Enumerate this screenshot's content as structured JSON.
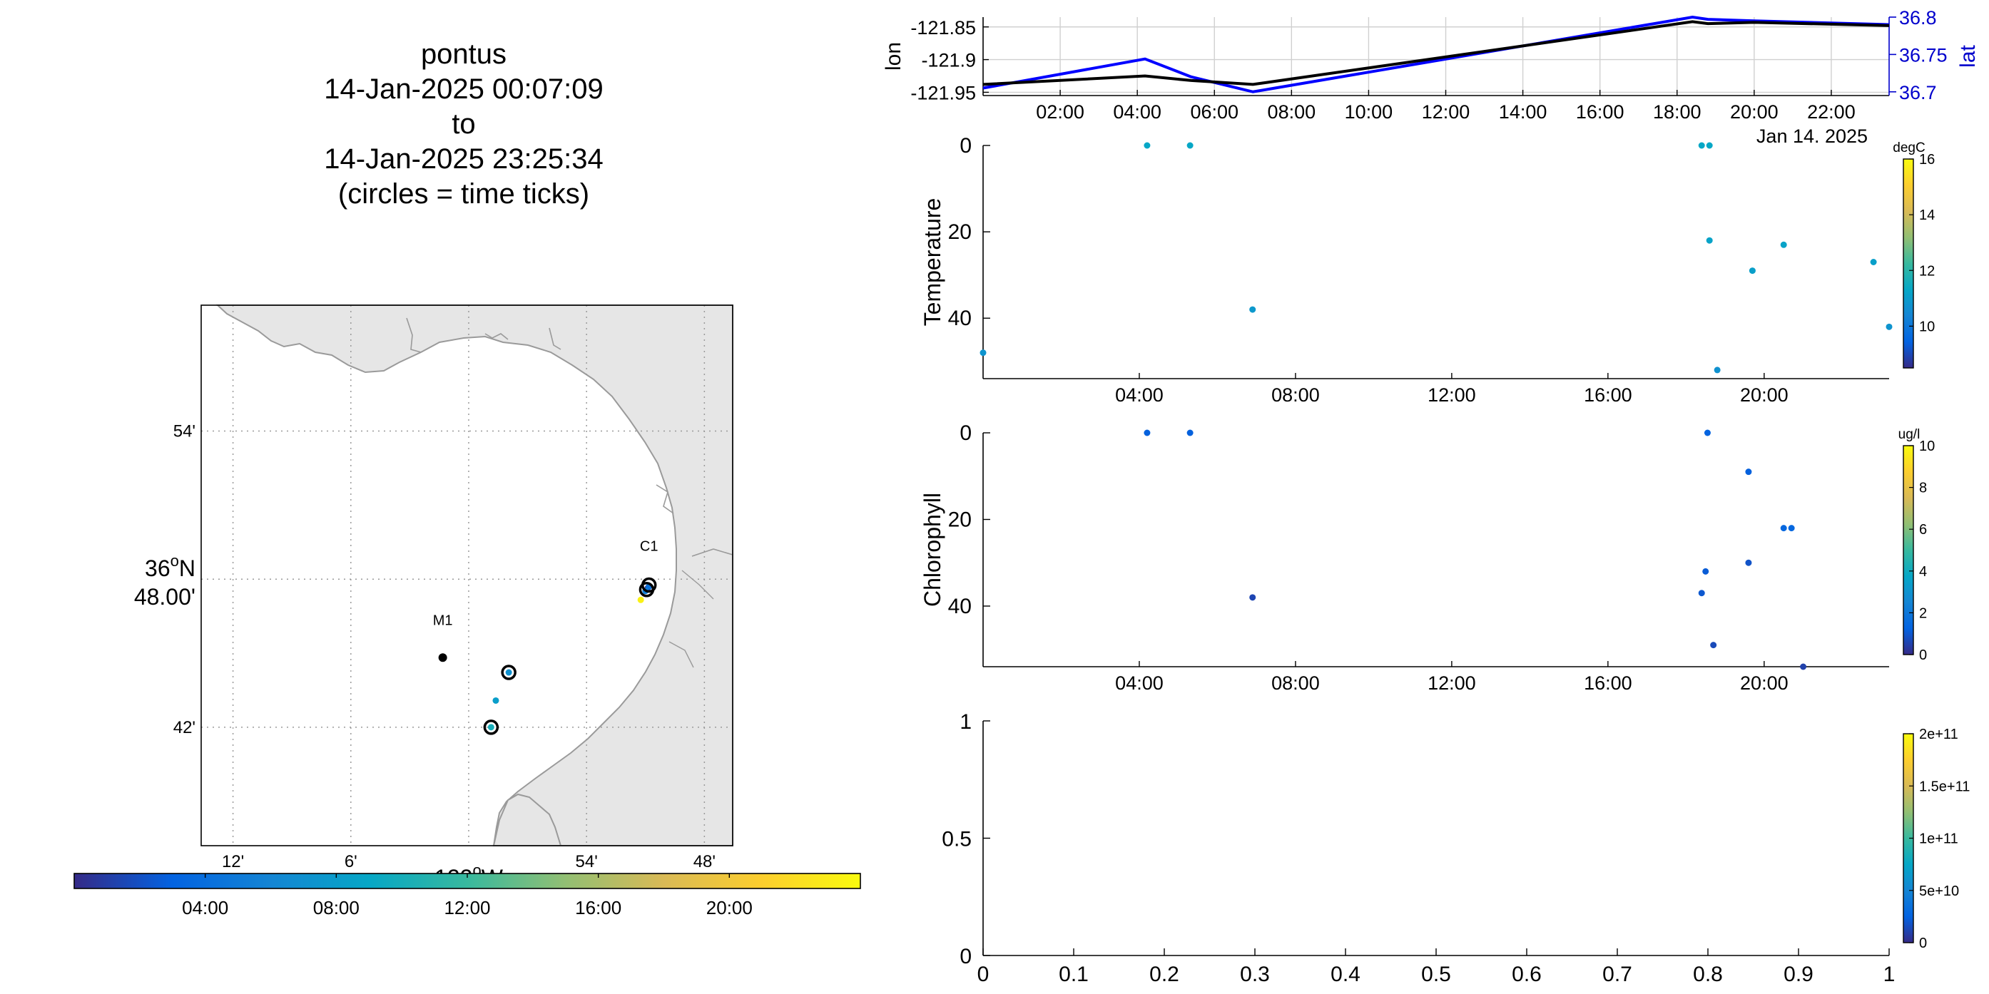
{
  "title_lines": [
    "pontus",
    "14-Jan-2025 00:07:09",
    "to",
    "14-Jan-2025 23:25:34",
    "(circles = time ticks)"
  ],
  "colors": {
    "axis": "#000000",
    "grid": "#d0d0d0",
    "land": "#e6e6e6",
    "coast": "#9a9a9a",
    "lon_line": "#000000",
    "lat_line": "#0000ff",
    "lat_axis": "#0000cc",
    "parula": [
      "#352a87",
      "#0363e1",
      "#1485d4",
      "#06a7c6",
      "#38b99e",
      "#92bf73",
      "#d9ba56",
      "#fcce2e",
      "#f9fb0e"
    ]
  },
  "map": {
    "lat_ticks": [
      "54'",
      "36°N\n48.00'",
      "42'"
    ],
    "lon_ticks": [
      "12'",
      "6'",
      "122°W",
      "54'",
      "48'"
    ],
    "lat_range": [
      36.62,
      36.985
    ],
    "lon_range": [
      -122.227,
      -121.776
    ],
    "stations": [
      {
        "name": "M1",
        "lat": 36.747,
        "lon": -122.022
      },
      {
        "name": "C1",
        "lat": 36.797,
        "lon": -121.847
      }
    ],
    "track_points": [
      {
        "lat": 36.794,
        "lon": -121.848,
        "t": 0.12
      },
      {
        "lat": 36.795,
        "lon": -121.847,
        "t": 4.3
      },
      {
        "lat": 36.792,
        "lon": -121.85,
        "t": 5.4
      },
      {
        "lat": 36.786,
        "lon": -121.854,
        "t": 23.3
      },
      {
        "lat": 36.737,
        "lon": -121.966,
        "t": 7.0
      },
      {
        "lat": 36.718,
        "lon": -121.977,
        "t": 8.2
      },
      {
        "lat": 36.7,
        "lon": -121.981,
        "t": 10.0
      }
    ],
    "time_tick_circles": [
      {
        "lat": 36.796,
        "lon": -121.847
      },
      {
        "lat": 36.793,
        "lon": -121.849
      },
      {
        "lat": 36.737,
        "lon": -121.966
      },
      {
        "lat": 36.7,
        "lon": -121.981
      }
    ],
    "colorbar_ticks": [
      "04:00",
      "08:00",
      "12:00",
      "16:00",
      "20:00"
    ],
    "colorbar_hours": [
      4,
      8,
      12,
      16,
      20
    ],
    "colorbar_range_hours": [
      0,
      24
    ]
  },
  "lonlat_panel": {
    "left_label": "lon",
    "right_label": "lat",
    "left_ticks": [
      "-121.85",
      "-121.9",
      "-121.95"
    ],
    "left_tick_values": [
      -121.85,
      -121.9,
      -121.95
    ],
    "right_ticks": [
      "36.8",
      "36.75",
      "36.7"
    ],
    "right_tick_values": [
      36.8,
      36.75,
      36.7
    ],
    "x_ticks": [
      "02:00",
      "04:00",
      "06:00",
      "08:00",
      "10:00",
      "12:00",
      "14:00",
      "16:00",
      "18:00",
      "20:00",
      "22:00"
    ],
    "x_tick_hours": [
      2,
      4,
      6,
      8,
      10,
      12,
      14,
      16,
      18,
      20,
      22
    ],
    "date_label": "Jan 14. 2025",
    "x_range_hours": [
      0,
      23.5
    ],
    "lon_series": [
      [
        0,
        -121.938
      ],
      [
        4.2,
        -121.925
      ],
      [
        5.4,
        -121.932
      ],
      [
        7.0,
        -121.938
      ],
      [
        18.4,
        -121.842
      ],
      [
        18.8,
        -121.845
      ],
      [
        20.0,
        -121.843
      ],
      [
        23.5,
        -121.848
      ]
    ],
    "lat_series": [
      [
        0,
        36.705
      ],
      [
        4.2,
        36.744
      ],
      [
        5.4,
        36.72
      ],
      [
        7.0,
        36.7
      ],
      [
        18.4,
        36.8
      ],
      [
        18.8,
        36.797
      ],
      [
        20.0,
        36.795
      ],
      [
        23.5,
        36.79
      ]
    ]
  },
  "temperature_panel": {
    "ylabel": "Temperature",
    "yticks": [
      "0",
      "20",
      "40"
    ],
    "ytick_values": [
      0,
      20,
      40
    ],
    "y_range": [
      0,
      54
    ],
    "x_ticks": [
      "04:00",
      "08:00",
      "12:00",
      "16:00",
      "20:00"
    ],
    "x_tick_hours": [
      4,
      8,
      12,
      16,
      20
    ],
    "date_label": "Jan 14. 2025",
    "x_range_hours": [
      0,
      23.2
    ],
    "colorbar_unit": "degC",
    "colorbar_ticks": [
      "16",
      "14",
      "12",
      "10"
    ],
    "colorbar_tick_values": [
      16,
      14,
      12,
      10
    ],
    "colorbar_range": [
      8.5,
      16
    ],
    "points": [
      {
        "t": 0.0,
        "depth": 48,
        "value": 10.8
      },
      {
        "t": 4.2,
        "depth": 0,
        "value": 11.3
      },
      {
        "t": 5.3,
        "depth": 0,
        "value": 11.3
      },
      {
        "t": 6.9,
        "depth": 38,
        "value": 10.9
      },
      {
        "t": 18.4,
        "depth": 0,
        "value": 11.3
      },
      {
        "t": 18.6,
        "depth": 0,
        "value": 11.3
      },
      {
        "t": 18.6,
        "depth": 22,
        "value": 11.2
      },
      {
        "t": 18.8,
        "depth": 52,
        "value": 10.7
      },
      {
        "t": 19.7,
        "depth": 29,
        "value": 11.1
      },
      {
        "t": 20.5,
        "depth": 23,
        "value": 11.2
      },
      {
        "t": 22.8,
        "depth": 27,
        "value": 11.1
      },
      {
        "t": 23.2,
        "depth": 42,
        "value": 10.8
      }
    ]
  },
  "chlorophyll_panel": {
    "ylabel": "Chlorophyll",
    "yticks": [
      "0",
      "20",
      "40"
    ],
    "ytick_values": [
      0,
      20,
      40
    ],
    "y_range": [
      0,
      54
    ],
    "x_ticks": [
      "04:00",
      "08:00",
      "12:00",
      "16:00",
      "20:00"
    ],
    "x_tick_hours": [
      4,
      8,
      12,
      16,
      20
    ],
    "date_label": "Jan 14. 2025",
    "x_range_hours": [
      0,
      23.2
    ],
    "colorbar_unit": "ug/l",
    "colorbar_ticks": [
      "10",
      "8",
      "6",
      "4",
      "2",
      "0"
    ],
    "colorbar_tick_values": [
      10,
      8,
      6,
      4,
      2,
      0
    ],
    "colorbar_range": [
      0,
      10
    ],
    "points": [
      {
        "t": 4.2,
        "depth": 0,
        "value": 1.2
      },
      {
        "t": 5.3,
        "depth": 0,
        "value": 1.2
      },
      {
        "t": 6.9,
        "depth": 38,
        "value": 0.6
      },
      {
        "t": 18.4,
        "depth": 37,
        "value": 1.0
      },
      {
        "t": 18.5,
        "depth": 32,
        "value": 1.1
      },
      {
        "t": 18.55,
        "depth": 0,
        "value": 1.3
      },
      {
        "t": 18.7,
        "depth": 49,
        "value": 0.7
      },
      {
        "t": 19.6,
        "depth": 9,
        "value": 1.2
      },
      {
        "t": 19.6,
        "depth": 30,
        "value": 0.9
      },
      {
        "t": 20.5,
        "depth": 22,
        "value": 1.4
      },
      {
        "t": 20.7,
        "depth": 22,
        "value": 1.4
      },
      {
        "t": 21.0,
        "depth": 54,
        "value": 0.5
      }
    ]
  },
  "empty_panel": {
    "yticks": [
      "1",
      "0.5",
      "0"
    ],
    "ytick_values": [
      1,
      0.5,
      0
    ],
    "xticks": [
      "0",
      "0.1",
      "0.2",
      "0.3",
      "0.4",
      "0.5",
      "0.6",
      "0.7",
      "0.8",
      "0.9",
      "1"
    ],
    "xtick_values": [
      0,
      0.1,
      0.2,
      0.3,
      0.4,
      0.5,
      0.6,
      0.7,
      0.8,
      0.9,
      1
    ],
    "colorbar_ticks": [
      "2e+11",
      "1.5e+11",
      "1e+11",
      "5e+10",
      "0"
    ],
    "colorbar_tick_values": [
      200000000000.0,
      150000000000.0,
      100000000000.0,
      50000000000.0,
      0
    ],
    "colorbar_range": [
      0,
      200000000000.0
    ]
  },
  "chart_data": [
    {
      "type": "scatter",
      "title": "pontus 14-Jan-2025 00:07:09 to 14-Jan-2025 23:25:34 (circles = time ticks)",
      "xlabel": "122°W",
      "ylabel": "36°N 48.00'",
      "xlim": [
        -122.227,
        -121.776
      ],
      "ylim": [
        36.62,
        36.985
      ],
      "series": [
        {
          "name": "M1",
          "x": [
            -122.022
          ],
          "y": [
            36.747
          ]
        },
        {
          "name": "C1",
          "x": [
            -121.847
          ],
          "y": [
            36.797
          ]
        }
      ]
    },
    {
      "type": "line",
      "xlabel": "Jan 14. 2025",
      "ylabel": "lon",
      "x": [
        0,
        4.2,
        5.4,
        7.0,
        18.4,
        18.8,
        20.0,
        23.5
      ],
      "series": [
        {
          "name": "lon",
          "values": [
            -121.938,
            -121.925,
            -121.932,
            -121.938,
            -121.842,
            -121.845,
            -121.843,
            -121.848
          ]
        },
        {
          "name": "lat",
          "values": [
            36.705,
            36.744,
            36.72,
            36.7,
            36.8,
            36.797,
            36.795,
            36.79
          ]
        }
      ]
    },
    {
      "type": "scatter",
      "ylabel": "Temperature",
      "xlabel": "Jan 14. 2025",
      "ylim": [
        54,
        0
      ],
      "x": [
        0.0,
        4.2,
        5.3,
        6.9,
        18.4,
        18.6,
        18.6,
        18.8,
        19.7,
        20.5,
        22.8,
        23.2
      ],
      "y": [
        48,
        0,
        0,
        38,
        0,
        0,
        22,
        52,
        29,
        23,
        27,
        42
      ]
    },
    {
      "type": "scatter",
      "ylabel": "Chlorophyll",
      "xlabel": "Jan 14. 2025",
      "ylim": [
        54,
        0
      ],
      "x": [
        4.2,
        5.3,
        6.9,
        18.4,
        18.5,
        18.55,
        18.7,
        19.6,
        19.6,
        20.5,
        20.7,
        21.0
      ],
      "y": [
        0,
        0,
        38,
        37,
        32,
        0,
        49,
        9,
        30,
        22,
        22,
        54
      ]
    },
    {
      "type": "scatter",
      "xlim": [
        0,
        1
      ],
      "ylim": [
        0,
        1
      ],
      "series": []
    }
  ]
}
